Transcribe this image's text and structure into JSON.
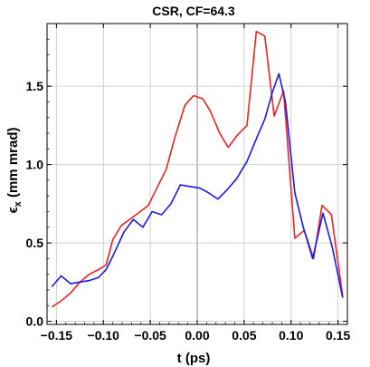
{
  "chart_data": {
    "type": "line",
    "title": "CSR, CF=64.3",
    "xlabel": "t (ps)",
    "ylabel_symbol": "ϵ",
    "ylabel_subscript": "x",
    "ylabel_rest": " (mm mrad)",
    "xlim": [
      -0.16,
      0.16
    ],
    "ylim": [
      -0.02,
      1.9
    ],
    "xticks": [
      -0.15,
      -0.1,
      -0.05,
      0.0,
      0.05,
      0.1,
      0.15
    ],
    "xtick_labels": [
      "−0.15",
      "−0.10",
      "−0.05",
      "0.00",
      "0.05",
      "0.10",
      "0.15"
    ],
    "yticks": [
      0.0,
      0.5,
      1.0,
      1.5
    ],
    "ytick_labels": [
      "0.0",
      "0.5",
      "1.0",
      "1.5"
    ],
    "grid": true,
    "colors": {
      "red": "#ee2222",
      "blue": "#1a1aee",
      "grid": "#d0d0d0",
      "zero": "#888888"
    },
    "series": [
      {
        "color": "#ee2222",
        "points": [
          [
            -0.155,
            0.09
          ],
          [
            -0.145,
            0.13
          ],
          [
            -0.135,
            0.18
          ],
          [
            -0.125,
            0.25
          ],
          [
            -0.115,
            0.3
          ],
          [
            -0.105,
            0.33
          ],
          [
            -0.097,
            0.36
          ],
          [
            -0.09,
            0.52
          ],
          [
            -0.081,
            0.61
          ],
          [
            -0.072,
            0.65
          ],
          [
            -0.063,
            0.69
          ],
          [
            -0.052,
            0.74
          ],
          [
            -0.043,
            0.85
          ],
          [
            -0.033,
            0.97
          ],
          [
            -0.024,
            1.17
          ],
          [
            -0.013,
            1.38
          ],
          [
            -0.004,
            1.44
          ],
          [
            0.006,
            1.42
          ],
          [
            0.014,
            1.34
          ],
          [
            0.024,
            1.2
          ],
          [
            0.033,
            1.11
          ],
          [
            0.043,
            1.19
          ],
          [
            0.053,
            1.25
          ],
          [
            0.063,
            1.85
          ],
          [
            0.072,
            1.82
          ],
          [
            0.082,
            1.31
          ],
          [
            0.092,
            1.47
          ],
          [
            0.104,
            0.53
          ],
          [
            0.114,
            0.58
          ],
          [
            0.124,
            0.4
          ],
          [
            0.133,
            0.74
          ],
          [
            0.143,
            0.68
          ],
          [
            0.155,
            0.16
          ]
        ]
      },
      {
        "color": "#1a1aee",
        "points": [
          [
            -0.155,
            0.22
          ],
          [
            -0.145,
            0.29
          ],
          [
            -0.135,
            0.24
          ],
          [
            -0.125,
            0.25
          ],
          [
            -0.115,
            0.26
          ],
          [
            -0.105,
            0.28
          ],
          [
            -0.097,
            0.33
          ],
          [
            -0.088,
            0.44
          ],
          [
            -0.078,
            0.57
          ],
          [
            -0.068,
            0.65
          ],
          [
            -0.058,
            0.6
          ],
          [
            -0.048,
            0.7
          ],
          [
            -0.038,
            0.68
          ],
          [
            -0.028,
            0.75
          ],
          [
            -0.018,
            0.87
          ],
          [
            -0.008,
            0.86
          ],
          [
            0.003,
            0.85
          ],
          [
            0.012,
            0.82
          ],
          [
            0.022,
            0.78
          ],
          [
            0.032,
            0.84
          ],
          [
            0.042,
            0.91
          ],
          [
            0.053,
            1.02
          ],
          [
            0.062,
            1.15
          ],
          [
            0.072,
            1.29
          ],
          [
            0.08,
            1.46
          ],
          [
            0.087,
            1.58
          ],
          [
            0.094,
            1.4
          ],
          [
            0.104,
            0.82
          ],
          [
            0.113,
            0.6
          ],
          [
            0.123,
            0.4
          ],
          [
            0.134,
            0.69
          ],
          [
            0.144,
            0.47
          ],
          [
            0.155,
            0.15
          ]
        ]
      }
    ]
  }
}
